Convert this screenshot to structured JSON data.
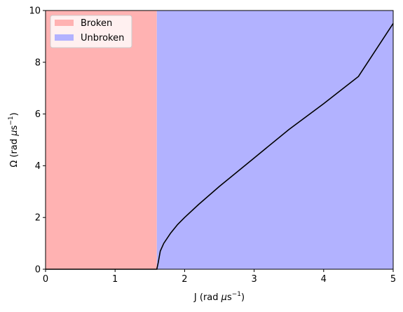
{
  "chart_data": {
    "type": "area",
    "xlabel": {
      "main": "J (rad ",
      "mu": "μ",
      "unit": "s",
      "exp": "−1",
      "close": ")"
    },
    "ylabel": {
      "main": "Ω (rad ",
      "mu": "μ",
      "unit": "s",
      "exp": "−1",
      "close": ")"
    },
    "xlim": [
      0,
      5
    ],
    "ylim": [
      0,
      10
    ],
    "xticks": [
      0,
      1,
      2,
      3,
      4,
      5
    ],
    "yticks": [
      0,
      2,
      4,
      6,
      8,
      10
    ],
    "xtick_labels": [
      "0",
      "1",
      "2",
      "3",
      "4",
      "5"
    ],
    "ytick_labels": [
      "0",
      "2",
      "4",
      "6",
      "8",
      "10"
    ],
    "grid": false,
    "legend_position": "top-left",
    "regions": [
      {
        "name": "Broken",
        "x_range": [
          0,
          1.6
        ],
        "color": "#ffb2b2"
      },
      {
        "name": "Unbroken",
        "x_range": [
          1.6,
          5
        ],
        "color": "#b2b2ff"
      }
    ],
    "series": [
      {
        "color": "#000000",
        "x": [
          0,
          1.6,
          1.62,
          1.65,
          1.7,
          1.8,
          1.9,
          2.0,
          2.2,
          2.5,
          3.0,
          3.5,
          4.0,
          4.5,
          5.0
        ],
        "y": [
          0,
          0,
          0.25,
          0.7,
          1.0,
          1.4,
          1.73,
          2.0,
          2.5,
          3.2,
          4.3,
          5.4,
          6.4,
          7.45,
          9.5
        ]
      }
    ]
  }
}
